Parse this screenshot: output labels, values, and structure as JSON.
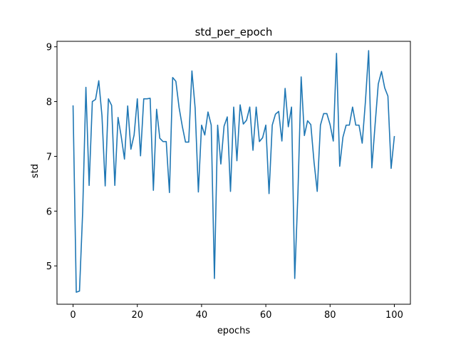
{
  "chart_data": {
    "type": "line",
    "title": "std_per_epoch",
    "xlabel": "epochs",
    "ylabel": "std",
    "xlim": [
      -5,
      105
    ],
    "ylim": [
      4.3,
      9.1
    ],
    "xticks": [
      0,
      20,
      40,
      60,
      80,
      100
    ],
    "yticks": [
      5,
      6,
      7,
      8,
      9
    ],
    "grid": false,
    "series": [
      {
        "color": "#1f77b4",
        "x": [
          0,
          1,
          2,
          3,
          4,
          5,
          6,
          7,
          8,
          9,
          10,
          11,
          12,
          13,
          14,
          15,
          16,
          17,
          18,
          19,
          20,
          21,
          22,
          23,
          24,
          25,
          26,
          27,
          28,
          29,
          30,
          31,
          32,
          33,
          34,
          35,
          36,
          37,
          38,
          39,
          40,
          41,
          42,
          43,
          44,
          45,
          46,
          47,
          48,
          49,
          50,
          51,
          52,
          53,
          54,
          55,
          56,
          57,
          58,
          59,
          60,
          61,
          62,
          63,
          64,
          65,
          66,
          67,
          68,
          69,
          70,
          71,
          72,
          73,
          74,
          75,
          76,
          77,
          78,
          79,
          80,
          81,
          82,
          83,
          84,
          85,
          86,
          87,
          88,
          89,
          90,
          91,
          92,
          93,
          94,
          95,
          96,
          97,
          98,
          99,
          100
        ],
        "values": [
          7.92,
          4.52,
          4.54,
          6.0,
          8.26,
          6.47,
          8.0,
          8.04,
          8.38,
          7.74,
          6.46,
          8.05,
          7.93,
          6.47,
          7.71,
          7.36,
          6.95,
          7.92,
          7.13,
          7.39,
          8.05,
          7.01,
          8.05,
          8.05,
          8.06,
          6.38,
          7.86,
          7.33,
          7.27,
          7.27,
          6.34,
          8.44,
          8.37,
          7.89,
          7.55,
          7.26,
          7.26,
          8.56,
          7.88,
          6.35,
          7.57,
          7.39,
          7.81,
          7.57,
          4.77,
          7.57,
          6.86,
          7.55,
          7.72,
          6.36,
          7.9,
          6.92,
          7.94,
          7.59,
          7.66,
          7.9,
          7.11,
          7.9,
          7.27,
          7.34,
          7.57,
          6.32,
          7.57,
          7.77,
          7.82,
          7.28,
          8.24,
          7.54,
          7.9,
          4.77,
          6.34,
          8.45,
          7.38,
          7.65,
          7.58,
          6.9,
          6.36,
          7.57,
          7.78,
          7.78,
          7.58,
          7.28,
          8.88,
          6.82,
          7.35,
          7.57,
          7.57,
          7.9,
          7.57,
          7.57,
          7.24,
          8.0,
          8.93,
          6.79,
          7.57,
          8.32,
          8.55,
          8.25,
          8.1,
          6.78,
          7.36
        ]
      }
    ]
  }
}
